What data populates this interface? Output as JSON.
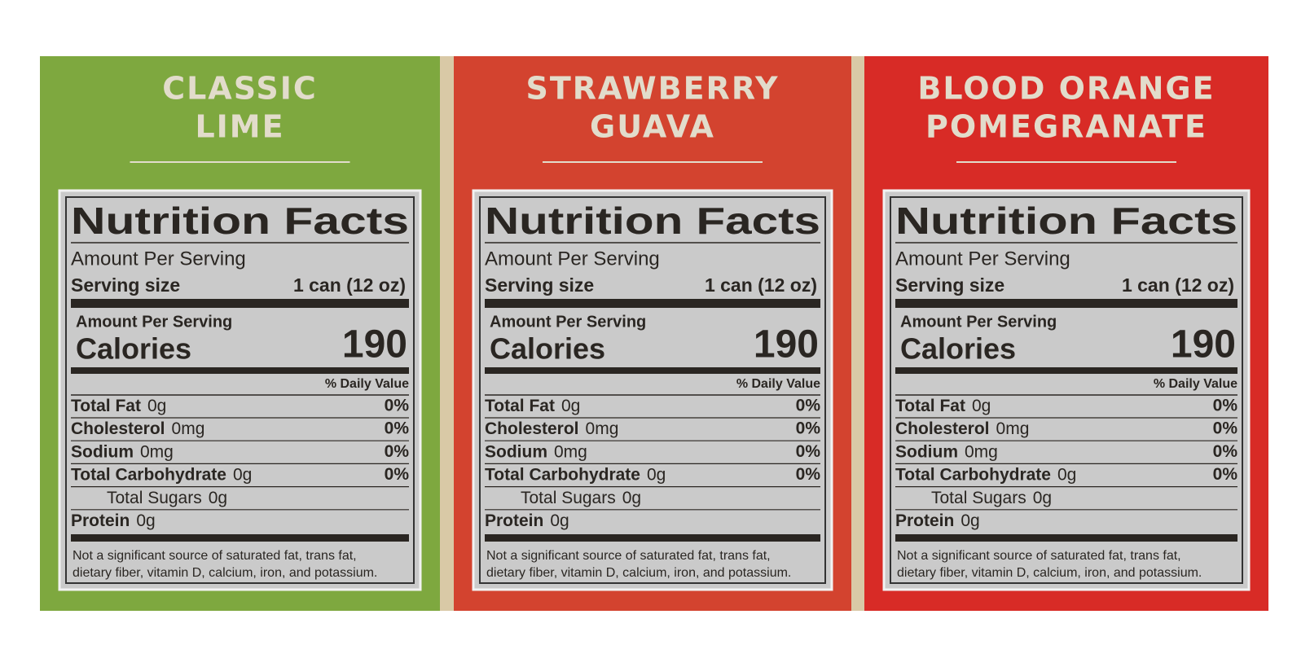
{
  "panels": [
    {
      "title": [
        "CLASSIC",
        "LIME"
      ],
      "color": "#7ea83f",
      "nutrition": {
        "heading": "Nutrition Facts",
        "amount_per_serving": "Amount Per Serving",
        "serving_size_label": "Serving size",
        "serving_size": "1 can (12 oz)",
        "calories_header": "Amount Per Serving",
        "calories_label": "Calories",
        "calories": 190,
        "daily_value_header": "% Daily Value",
        "nutrients": [
          {
            "name": "Total Fat",
            "amount": "0g",
            "daily_value": "0%"
          },
          {
            "name": "Cholesterol",
            "amount": "0mg",
            "daily_value": "0%"
          },
          {
            "name": "Sodium",
            "amount": "0mg",
            "daily_value": "0%"
          },
          {
            "name": "Total Carbohydrate",
            "amount": "0g",
            "daily_value": "0%"
          },
          {
            "name": "Total Sugars",
            "amount": "0g"
          },
          {
            "name": "Protein",
            "amount": "0g"
          }
        ],
        "footnote": [
          "Not a significant source of saturated fat, trans fat,",
          "dietary fiber, vitamin D, calcium, iron, and potassium."
        ]
      }
    },
    {
      "title": [
        "STRAWBERRY",
        "GUAVA"
      ],
      "color": "#d3432f",
      "nutrition": {
        "heading": "Nutrition Facts",
        "amount_per_serving": "Amount Per Serving",
        "serving_size_label": "Serving size",
        "serving_size": "1 can (12 oz)",
        "calories_header": "Amount Per Serving",
        "calories_label": "Calories",
        "calories": 190,
        "daily_value_header": "% Daily Value",
        "nutrients": [
          {
            "name": "Total Fat",
            "amount": "0g",
            "daily_value": "0%"
          },
          {
            "name": "Cholesterol",
            "amount": "0mg",
            "daily_value": "0%"
          },
          {
            "name": "Sodium",
            "amount": "0mg",
            "daily_value": "0%"
          },
          {
            "name": "Total Carbohydrate",
            "amount": "0g",
            "daily_value": "0%"
          },
          {
            "name": "Total Sugars",
            "amount": "0g"
          },
          {
            "name": "Protein",
            "amount": "0g"
          }
        ],
        "footnote": [
          "Not a significant source of saturated fat, trans fat,",
          "dietary fiber, vitamin D, calcium, iron, and potassium."
        ]
      }
    },
    {
      "title": [
        "BLOOD ORANGE",
        "POMEGRANATE"
      ],
      "color": "#d82b26",
      "nutrition": {
        "heading": "Nutrition Facts",
        "amount_per_serving": "Amount Per Serving",
        "serving_size_label": "Serving size",
        "serving_size": "1 can (12 oz)",
        "calories_header": "Amount Per Serving",
        "calories_label": "Calories",
        "calories": 190,
        "daily_value_header": "% Daily Value",
        "nutrients": [
          {
            "name": "Total Fat",
            "amount": "0g",
            "daily_value": "0%"
          },
          {
            "name": "Cholesterol",
            "amount": "0mg",
            "daily_value": "0%"
          },
          {
            "name": "Sodium",
            "amount": "0mg",
            "daily_value": "0%"
          },
          {
            "name": "Total Carbohydrate",
            "amount": "0g",
            "daily_value": "0%"
          },
          {
            "name": "Total Sugars",
            "amount": "0g"
          },
          {
            "name": "Protein",
            "amount": "0g"
          }
        ],
        "footnote": [
          "Not a significant source of saturated fat, trans fat,",
          "dietary fiber, vitamin D, calcium, iron, and potassium."
        ]
      }
    }
  ]
}
